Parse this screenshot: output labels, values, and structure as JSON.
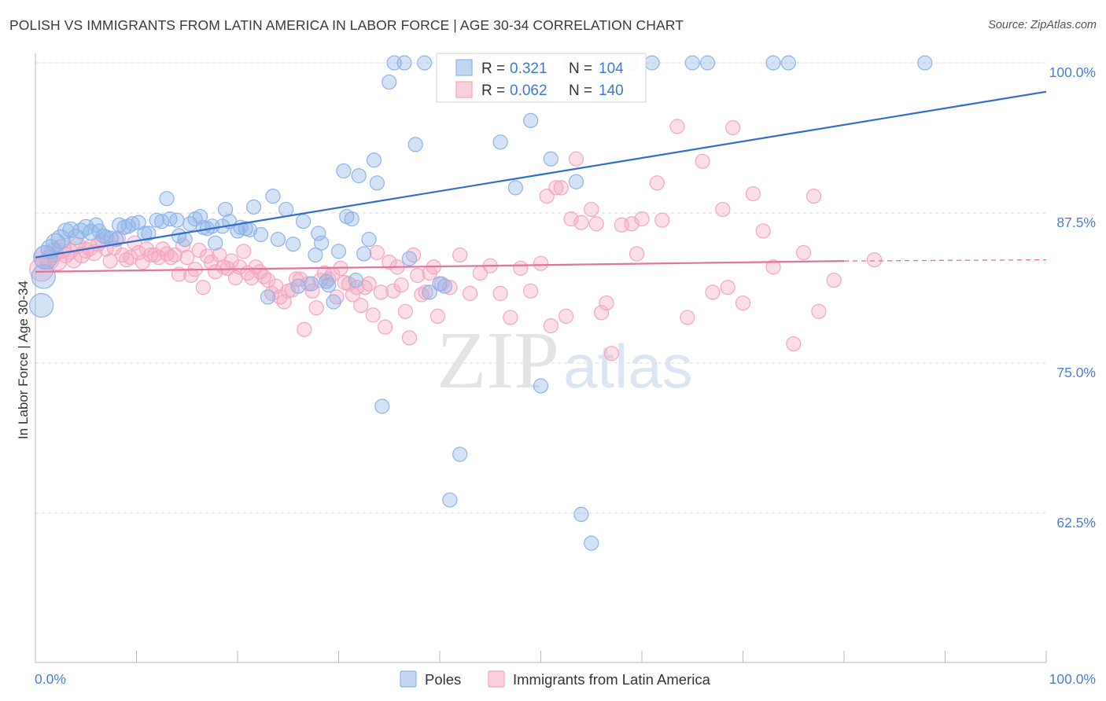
{
  "header": {
    "title": "POLISH VS IMMIGRANTS FROM LATIN AMERICA IN LABOR FORCE | AGE 30-34 CORRELATION CHART",
    "source": "Source: ZipAtlas.com"
  },
  "watermark": {
    "zip": "ZIP",
    "atlas": "atlas"
  },
  "chart_data": {
    "type": "scatter",
    "title": "POLISH VS IMMIGRANTS FROM LATIN AMERICA IN LABOR FORCE | AGE 30-34 CORRELATION CHART",
    "xlabel": "",
    "ylabel": "In Labor Force | Age 30-34",
    "xlim": [
      0,
      100
    ],
    "ylim": [
      51,
      101
    ],
    "x_tick_labels": {
      "left": "0.0%",
      "right": "100.0%"
    },
    "y_ticks": [
      {
        "value": 100.0,
        "label": "100.0%"
      },
      {
        "value": 87.5,
        "label": "87.5%"
      },
      {
        "value": 75.0,
        "label": "75.0%"
      },
      {
        "value": 62.5,
        "label": "62.5%"
      }
    ],
    "grid": "horizontal dashed",
    "legend_position": "bottom",
    "stats_box": [
      {
        "r_label": "R = ",
        "r_value": "0.321",
        "n_label": "N = ",
        "n_value": "104"
      },
      {
        "r_label": "R = ",
        "r_value": "0.062",
        "n_label": "N = ",
        "n_value": "140"
      }
    ],
    "series": [
      {
        "name": "Poles",
        "color": "#8fb4e8",
        "line_color": "#2f6fcc",
        "trend": {
          "x": [
            0,
            100
          ],
          "y": [
            83.8,
            97.6
          ]
        },
        "points": [
          [
            0.6,
            79.8
          ],
          [
            0.8,
            82.2
          ],
          [
            1.0,
            83.8
          ],
          [
            1.5,
            84.5
          ],
          [
            2.0,
            85.0
          ],
          [
            2.5,
            85.3
          ],
          [
            3.0,
            86.0
          ],
          [
            3.5,
            86.1
          ],
          [
            4.0,
            85.5
          ],
          [
            4.5,
            86.0
          ],
          [
            5.0,
            86.3
          ],
          [
            5.5,
            85.9
          ],
          [
            6.0,
            86.5
          ],
          [
            6.3,
            86.0
          ],
          [
            6.7,
            85.6
          ],
          [
            7.0,
            85.5
          ],
          [
            7.5,
            85.4
          ],
          [
            8.0,
            85.3
          ],
          [
            8.3,
            86.5
          ],
          [
            8.8,
            86.3
          ],
          [
            9.2,
            86.4
          ],
          [
            9.6,
            86.6
          ],
          [
            10.2,
            86.7
          ],
          [
            10.8,
            85.8
          ],
          [
            11.2,
            85.8
          ],
          [
            12.0,
            86.9
          ],
          [
            12.5,
            86.8
          ],
          [
            13.0,
            88.7
          ],
          [
            13.3,
            87.0
          ],
          [
            14.0,
            86.9
          ],
          [
            14.2,
            85.6
          ],
          [
            14.8,
            85.3
          ],
          [
            15.3,
            86.6
          ],
          [
            15.8,
            87.0
          ],
          [
            16.3,
            87.2
          ],
          [
            16.6,
            86.3
          ],
          [
            17.0,
            86.2
          ],
          [
            17.5,
            86.4
          ],
          [
            17.8,
            85.0
          ],
          [
            18.5,
            86.4
          ],
          [
            18.8,
            87.8
          ],
          [
            19.2,
            86.8
          ],
          [
            20.0,
            86.0
          ],
          [
            20.3,
            86.3
          ],
          [
            20.8,
            86.2
          ],
          [
            21.2,
            86.1
          ],
          [
            21.6,
            88.0
          ],
          [
            22.3,
            85.7
          ],
          [
            23.0,
            80.5
          ],
          [
            23.5,
            88.9
          ],
          [
            24.0,
            85.3
          ],
          [
            24.8,
            87.8
          ],
          [
            25.5,
            84.9
          ],
          [
            26.0,
            81.4
          ],
          [
            26.5,
            86.8
          ],
          [
            27.3,
            81.6
          ],
          [
            27.7,
            84.0
          ],
          [
            28.0,
            85.8
          ],
          [
            28.3,
            85.0
          ],
          [
            28.8,
            81.8
          ],
          [
            29.0,
            81.5
          ],
          [
            29.5,
            80.1
          ],
          [
            30.0,
            84.3
          ],
          [
            30.5,
            91.0
          ],
          [
            30.8,
            87.2
          ],
          [
            31.3,
            87.0
          ],
          [
            31.7,
            81.9
          ],
          [
            32.0,
            90.6
          ],
          [
            32.5,
            84.1
          ],
          [
            33.0,
            85.3
          ],
          [
            33.5,
            91.9
          ],
          [
            33.8,
            90.0
          ],
          [
            34.3,
            71.4
          ],
          [
            35.0,
            98.4
          ],
          [
            35.5,
            100.0
          ],
          [
            36.5,
            100.0
          ],
          [
            37.0,
            83.7
          ],
          [
            37.6,
            93.2
          ],
          [
            38.5,
            100.0
          ],
          [
            39.0,
            80.9
          ],
          [
            40.0,
            81.6
          ],
          [
            40.5,
            81.4
          ],
          [
            41.0,
            63.6
          ],
          [
            42.0,
            67.4
          ],
          [
            43.5,
            100.0
          ],
          [
            44.8,
            100.0
          ],
          [
            46.0,
            93.4
          ],
          [
            47.5,
            89.6
          ],
          [
            49.0,
            95.2
          ],
          [
            50.0,
            73.1
          ],
          [
            51.0,
            92.0
          ],
          [
            53.0,
            100.0
          ],
          [
            53.5,
            90.1
          ],
          [
            54.0,
            62.4
          ],
          [
            55.0,
            60.0
          ],
          [
            56.0,
            100.0
          ],
          [
            59.0,
            100.0
          ],
          [
            61.0,
            100.0
          ],
          [
            65.0,
            100.0
          ],
          [
            66.5,
            100.0
          ],
          [
            73.0,
            100.0
          ],
          [
            74.5,
            100.0
          ],
          [
            88.0,
            100.0
          ]
        ]
      },
      {
        "name": "Immigrants from Latin America",
        "color": "#f4a7c0",
        "line_color": "#e8709a",
        "trend": {
          "x": [
            0,
            80
          ],
          "y": [
            82.6,
            83.5
          ]
        },
        "trend_dashed": {
          "x": [
            80,
            100
          ],
          "y": [
            83.5,
            83.6
          ]
        },
        "points": [
          [
            0.6,
            82.8
          ],
          [
            1.0,
            83.8
          ],
          [
            1.4,
            83.6
          ],
          [
            1.8,
            84.2
          ],
          [
            2.2,
            83.5
          ],
          [
            2.6,
            84.5
          ],
          [
            3.0,
            84.0
          ],
          [
            3.4,
            84.3
          ],
          [
            3.8,
            83.6
          ],
          [
            4.2,
            84.8
          ],
          [
            4.6,
            84.0
          ],
          [
            5.0,
            84.4
          ],
          [
            5.4,
            84.6
          ],
          [
            5.8,
            84.2
          ],
          [
            6.2,
            84.9
          ],
          [
            6.6,
            85.2
          ],
          [
            7.0,
            84.5
          ],
          [
            7.4,
            83.5
          ],
          [
            7.8,
            84.6
          ],
          [
            8.2,
            85.4
          ],
          [
            8.6,
            84.0
          ],
          [
            9.0,
            83.6
          ],
          [
            9.4,
            83.8
          ],
          [
            9.8,
            85.0
          ],
          [
            10.2,
            84.2
          ],
          [
            10.6,
            83.4
          ],
          [
            11.0,
            84.5
          ],
          [
            11.4,
            84.0
          ],
          [
            11.8,
            84.0
          ],
          [
            12.2,
            83.8
          ],
          [
            12.6,
            84.5
          ],
          [
            13.0,
            84.1
          ],
          [
            13.4,
            83.8
          ],
          [
            13.8,
            84.0
          ],
          [
            14.2,
            82.4
          ],
          [
            14.6,
            84.8
          ],
          [
            15.0,
            83.8
          ],
          [
            15.4,
            82.3
          ],
          [
            15.8,
            82.8
          ],
          [
            16.2,
            84.4
          ],
          [
            16.6,
            81.3
          ],
          [
            17.0,
            83.9
          ],
          [
            17.4,
            83.4
          ],
          [
            17.8,
            82.6
          ],
          [
            18.2,
            84.0
          ],
          [
            18.6,
            83.0
          ],
          [
            19.0,
            82.9
          ],
          [
            19.4,
            83.5
          ],
          [
            19.8,
            82.1
          ],
          [
            20.2,
            83.0
          ],
          [
            20.6,
            84.3
          ],
          [
            21.0,
            82.5
          ],
          [
            21.4,
            82.1
          ],
          [
            21.8,
            83.0
          ],
          [
            22.2,
            82.6
          ],
          [
            22.6,
            82.2
          ],
          [
            23.0,
            81.9
          ],
          [
            23.4,
            80.8
          ],
          [
            23.8,
            81.4
          ],
          [
            24.2,
            80.5
          ],
          [
            24.6,
            80.1
          ],
          [
            25.0,
            81.0
          ],
          [
            25.4,
            81.1
          ],
          [
            25.8,
            82.0
          ],
          [
            26.2,
            82.0
          ],
          [
            26.6,
            77.8
          ],
          [
            27.0,
            81.6
          ],
          [
            27.4,
            81.0
          ],
          [
            27.8,
            79.6
          ],
          [
            28.2,
            81.9
          ],
          [
            28.6,
            82.5
          ],
          [
            29.0,
            82.0
          ],
          [
            29.4,
            82.4
          ],
          [
            29.8,
            80.5
          ],
          [
            30.2,
            82.9
          ],
          [
            30.6,
            81.7
          ],
          [
            31.0,
            81.6
          ],
          [
            31.4,
            80.7
          ],
          [
            31.8,
            81.3
          ],
          [
            32.2,
            79.8
          ],
          [
            32.6,
            81.3
          ],
          [
            33.0,
            81.6
          ],
          [
            33.4,
            79.0
          ],
          [
            33.8,
            84.2
          ],
          [
            34.2,
            80.9
          ],
          [
            34.6,
            78.0
          ],
          [
            35.0,
            83.4
          ],
          [
            35.4,
            81.0
          ],
          [
            35.8,
            83.0
          ],
          [
            36.2,
            81.5
          ],
          [
            36.6,
            79.3
          ],
          [
            37.0,
            77.1
          ],
          [
            37.4,
            84.0
          ],
          [
            37.8,
            82.3
          ],
          [
            38.2,
            80.7
          ],
          [
            38.6,
            80.9
          ],
          [
            39.0,
            82.5
          ],
          [
            39.4,
            83.0
          ],
          [
            39.8,
            78.9
          ],
          [
            40.2,
            81.6
          ],
          [
            41.0,
            81.3
          ],
          [
            42.0,
            84.0
          ],
          [
            43.0,
            80.8
          ],
          [
            44.0,
            82.5
          ],
          [
            45.0,
            83.1
          ],
          [
            46.0,
            80.8
          ],
          [
            47.0,
            78.8
          ],
          [
            48.0,
            82.9
          ],
          [
            49.0,
            81.0
          ],
          [
            50.0,
            83.3
          ],
          [
            50.6,
            88.9
          ],
          [
            51.0,
            78.1
          ],
          [
            51.5,
            89.6
          ],
          [
            52.0,
            89.6
          ],
          [
            52.5,
            78.9
          ],
          [
            53.0,
            87.0
          ],
          [
            53.5,
            92.0
          ],
          [
            54.0,
            86.7
          ],
          [
            55.0,
            87.8
          ],
          [
            55.5,
            86.6
          ],
          [
            56.0,
            79.2
          ],
          [
            56.5,
            80.0
          ],
          [
            57.0,
            75.8
          ],
          [
            58.0,
            86.5
          ],
          [
            59.0,
            86.6
          ],
          [
            59.5,
            84.1
          ],
          [
            60.0,
            87.0
          ],
          [
            61.5,
            90.0
          ],
          [
            62.0,
            86.9
          ],
          [
            63.5,
            94.7
          ],
          [
            64.5,
            78.8
          ],
          [
            66.0,
            91.8
          ],
          [
            67.0,
            80.9
          ],
          [
            68.0,
            87.8
          ],
          [
            68.5,
            81.3
          ],
          [
            69.0,
            94.6
          ],
          [
            70.0,
            80.0
          ],
          [
            71.0,
            89.1
          ],
          [
            72.0,
            86.0
          ],
          [
            73.0,
            83.0
          ],
          [
            75.0,
            76.6
          ],
          [
            76.0,
            84.2
          ],
          [
            77.0,
            88.9
          ],
          [
            77.5,
            79.3
          ],
          [
            79.0,
            81.9
          ],
          [
            83.0,
            83.6
          ]
        ]
      }
    ]
  }
}
